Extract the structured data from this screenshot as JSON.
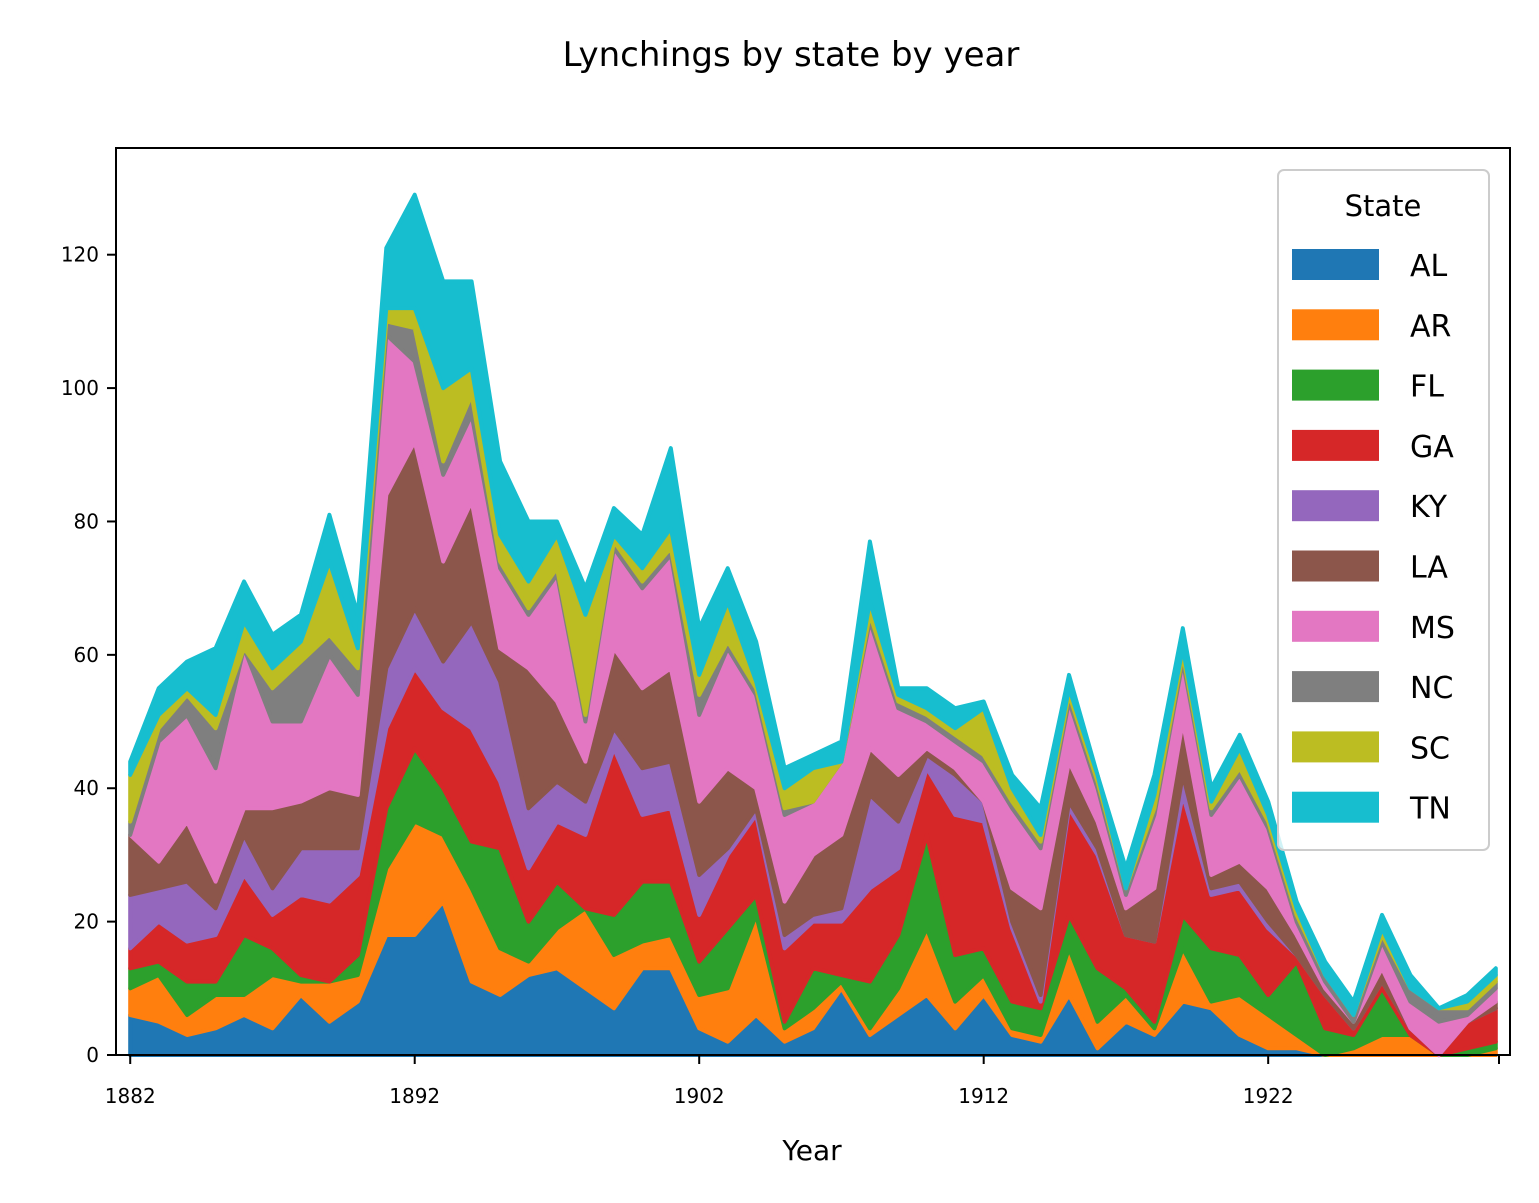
{
  "chart_data": {
    "type": "area",
    "stacked": true,
    "title": "Lynchings by state by year",
    "xlabel": "Year",
    "ylabel": "",
    "xlim": [
      1881.5,
      1930.5
    ],
    "ylim": [
      0,
      136
    ],
    "x": [
      1882,
      1883,
      1884,
      1885,
      1886,
      1887,
      1888,
      1889,
      1890,
      1891,
      1892,
      1893,
      1894,
      1895,
      1896,
      1897,
      1898,
      1899,
      1900,
      1901,
      1902,
      1903,
      1904,
      1905,
      1906,
      1907,
      1908,
      1909,
      1910,
      1911,
      1912,
      1913,
      1914,
      1915,
      1916,
      1917,
      1918,
      1919,
      1920,
      1921,
      1922,
      1923,
      1924,
      1925,
      1926,
      1927,
      1928,
      1929,
      1930
    ],
    "x_ticks": [
      1882,
      1892,
      1902,
      1912,
      1922
    ],
    "x_ticks_unlabeled": [
      1932
    ],
    "y_ticks": [
      0,
      20,
      40,
      60,
      80,
      100,
      120
    ],
    "grid": false,
    "legend": {
      "title": "State",
      "placement": "upper right"
    },
    "series": [
      {
        "name": "AL",
        "color": "#1f77b4",
        "values": [
          6,
          5,
          3,
          4,
          6,
          4,
          9,
          5,
          8,
          18,
          18,
          23,
          11,
          9,
          12,
          13,
          10,
          7,
          13,
          13,
          4,
          2,
          6,
          2,
          4,
          10,
          3,
          6,
          9,
          4,
          9,
          3,
          2,
          9,
          1,
          5,
          3,
          8,
          7,
          3,
          1,
          1,
          0,
          0,
          0,
          0,
          0,
          0,
          0
        ]
      },
      {
        "name": "AR",
        "color": "#ff7f0e",
        "values": [
          4,
          7,
          3,
          5,
          3,
          8,
          2,
          6,
          4,
          10,
          17,
          10,
          14,
          7,
          2,
          6,
          12,
          8,
          4,
          5,
          5,
          8,
          15,
          2,
          3,
          1,
          1,
          4,
          10,
          4,
          3,
          1,
          1,
          7,
          4,
          4,
          1,
          8,
          1,
          6,
          5,
          2,
          0,
          1,
          3,
          3,
          0,
          0,
          1
        ]
      },
      {
        "name": "FL",
        "color": "#2ca02c",
        "values": [
          3,
          2,
          5,
          2,
          9,
          4,
          1,
          0,
          3,
          9,
          11,
          7,
          7,
          15,
          6,
          7,
          0,
          6,
          9,
          8,
          5,
          9,
          3,
          1,
          6,
          1,
          7,
          8,
          14,
          7,
          4,
          4,
          4,
          5,
          8,
          1,
          1,
          5,
          8,
          6,
          3,
          11,
          4,
          2,
          7,
          0,
          0,
          1,
          1
        ]
      },
      {
        "name": "GA",
        "color": "#d62728",
        "values": [
          3,
          6,
          6,
          7,
          9,
          5,
          12,
          12,
          12,
          12,
          12,
          12,
          17,
          10,
          8,
          9,
          11,
          25,
          10,
          11,
          7,
          11,
          12,
          11,
          7,
          8,
          14,
          10,
          10,
          21,
          19,
          11,
          1,
          16,
          17,
          8,
          12,
          18,
          8,
          10,
          10,
          1,
          5,
          1,
          1,
          1,
          0,
          4,
          5
        ]
      },
      {
        "name": "KY",
        "color": "#9467bd",
        "values": [
          8,
          5,
          9,
          4,
          6,
          4,
          7,
          8,
          4,
          9,
          9,
          7,
          16,
          15,
          9,
          6,
          5,
          3,
          7,
          7,
          6,
          1,
          1,
          2,
          1,
          2,
          14,
          7,
          2,
          6,
          3,
          1,
          1,
          1,
          1,
          0,
          0,
          3,
          1,
          1,
          1,
          0,
          0,
          0,
          0,
          0,
          0,
          0,
          0
        ]
      },
      {
        "name": "LA",
        "color": "#8c564b",
        "values": [
          9,
          4,
          9,
          4,
          4,
          12,
          7,
          9,
          8,
          26,
          25,
          15,
          18,
          5,
          21,
          12,
          6,
          12,
          12,
          14,
          11,
          12,
          3,
          5,
          9,
          11,
          7,
          7,
          1,
          1,
          0,
          5,
          13,
          6,
          4,
          4,
          8,
          8,
          2,
          3,
          5,
          3,
          1,
          1,
          2,
          0,
          0,
          0,
          1
        ]
      },
      {
        "name": "MS",
        "color": "#e377c2",
        "values": [
          0,
          18,
          16,
          17,
          24,
          13,
          12,
          20,
          15,
          24,
          12,
          13,
          13,
          12,
          8,
          19,
          6,
          15,
          15,
          17,
          13,
          18,
          14,
          13,
          8,
          11,
          19,
          10,
          4,
          4,
          6,
          12,
          9,
          9,
          5,
          2,
          11,
          9,
          9,
          13,
          9,
          2,
          1,
          0,
          4,
          4,
          5,
          1,
          2
        ]
      },
      {
        "name": "NC",
        "color": "#7f7f7f",
        "values": [
          2,
          2,
          3,
          6,
          0,
          5,
          9,
          3,
          4,
          2,
          5,
          2,
          3,
          1,
          1,
          1,
          1,
          1,
          1,
          1,
          3,
          1,
          1,
          1,
          0,
          0,
          1,
          1,
          1,
          1,
          1,
          1,
          1,
          1,
          1,
          1,
          1,
          1,
          1,
          1,
          1,
          1,
          1,
          1,
          1,
          2,
          2,
          1,
          1
        ]
      },
      {
        "name": "SC",
        "color": "#bcbd22",
        "values": [
          7,
          2,
          1,
          2,
          4,
          3,
          3,
          11,
          3,
          2,
          3,
          11,
          4,
          4,
          4,
          5,
          15,
          1,
          2,
          3,
          3,
          6,
          1,
          3,
          5,
          0,
          2,
          1,
          1,
          1,
          7,
          2,
          1,
          1,
          1,
          0,
          2,
          1,
          1,
          3,
          1,
          1,
          0,
          0,
          1,
          0,
          0,
          1,
          1
        ]
      },
      {
        "name": "TN",
        "color": "#17becf",
        "values": [
          2,
          4,
          4,
          10,
          6,
          5,
          4,
          7,
          5,
          9,
          17,
          16,
          13,
          11,
          9,
          2,
          4,
          4,
          5,
          12,
          7,
          5,
          6,
          3,
          2,
          3,
          9,
          1,
          3,
          3,
          1,
          2,
          4,
          2,
          0,
          3,
          3,
          3,
          2,
          2,
          2,
          1,
          2,
          2,
          2,
          2,
          0,
          1,
          1
        ]
      }
    ]
  }
}
